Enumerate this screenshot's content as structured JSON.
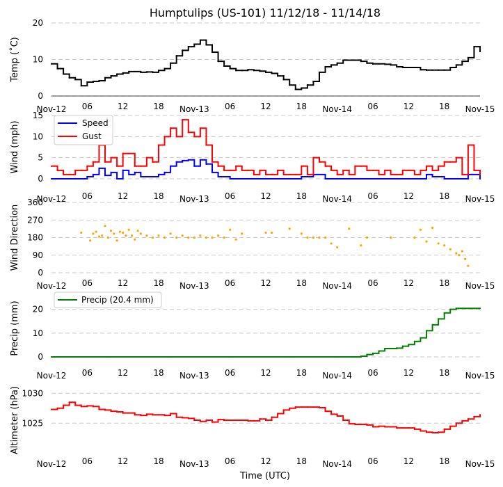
{
  "title": "Humptulips (US-101) 11/12/18 - 11/14/18",
  "xlabel": "Time (UTC)",
  "x_tick_labels": [
    "Nov-12",
    "06",
    "12",
    "18",
    "Nov-13",
    "06",
    "12",
    "18",
    "Nov-14",
    "06",
    "12",
    "18",
    "Nov-15"
  ],
  "colors": {
    "temp": "#000000",
    "speed": "#0000ff",
    "gust": "#ff0000",
    "direction": "#ffa500",
    "precip": "#008000",
    "altimeter": "#ff0000"
  },
  "chart_data": [
    {
      "type": "line",
      "name": "temp",
      "ylabel": "Temp (˚C)",
      "ylim": [
        0,
        20
      ],
      "yticks": [
        0,
        10,
        20
      ],
      "x_unit": "hours since Nov-12 00:00",
      "series": [
        {
          "name": "Temp",
          "color": "#000000",
          "x": [
            0,
            1,
            2,
            3,
            4,
            5,
            6,
            7,
            8,
            9,
            10,
            11,
            12,
            13,
            14,
            15,
            16,
            17,
            18,
            19,
            20,
            21,
            22,
            23,
            24,
            25,
            26,
            27,
            28,
            29,
            30,
            31,
            32,
            33,
            34,
            35,
            36,
            37,
            38,
            39,
            40,
            41,
            42,
            43,
            44,
            45,
            46,
            47,
            48,
            49,
            50,
            51,
            52,
            53,
            54,
            55,
            56,
            57,
            58,
            59,
            60,
            61,
            62,
            63,
            64,
            65,
            66,
            67,
            68,
            69,
            70,
            71,
            72
          ],
          "values": [
            8.8,
            7.5,
            6,
            5,
            4.5,
            2.8,
            3.8,
            4,
            4.2,
            5,
            5.5,
            6,
            6.3,
            6.7,
            6.7,
            6.5,
            6.6,
            6.5,
            7,
            7.5,
            9,
            11,
            12.5,
            13.5,
            14.2,
            15.3,
            14,
            12,
            9.5,
            8.2,
            7.5,
            7,
            7,
            7.2,
            7,
            6.8,
            6.5,
            6.2,
            5.5,
            4.5,
            3,
            1.8,
            2.2,
            3,
            4,
            6.5,
            8,
            8.5,
            9,
            9.8,
            9.8,
            9.8,
            9.5,
            9,
            8.8,
            8.8,
            8.7,
            8.5,
            8,
            7.8,
            7.8,
            7.8,
            7.2,
            7.1,
            7.1,
            7.1,
            7.1,
            7.8,
            8.5,
            9.5,
            10.5,
            13.5,
            12.2
          ]
        }
      ]
    },
    {
      "type": "line",
      "name": "wind",
      "ylabel": "Wind (mph)",
      "ylim": [
        0,
        15
      ],
      "yticks": [
        0,
        5,
        10,
        15
      ],
      "legend": "upper-left",
      "series": [
        {
          "name": "Speed",
          "color": "#0000ff",
          "x": [
            0,
            4,
            6,
            7,
            8,
            9,
            10,
            11,
            12,
            13,
            14,
            15,
            16,
            17,
            18,
            19,
            20,
            21,
            22,
            23,
            24,
            25,
            26,
            27,
            28,
            30,
            36,
            40,
            42,
            44,
            46,
            48,
            50,
            52,
            58,
            60,
            62,
            63,
            64,
            65,
            66,
            68,
            70,
            72
          ],
          "values": [
            0,
            0,
            0.5,
            1,
            2.5,
            0.8,
            1.5,
            0,
            2,
            1,
            1.5,
            0.5,
            0.5,
            0.5,
            1,
            1.5,
            3,
            4,
            4.3,
            4.5,
            3,
            4.5,
            3.5,
            1.5,
            0.5,
            0,
            0,
            0,
            0.5,
            1,
            0,
            0,
            0,
            0,
            0,
            0,
            0,
            1,
            0.5,
            0.5,
            0,
            0,
            1,
            0
          ]
        },
        {
          "name": "Gust",
          "color": "#ff0000",
          "x": [
            0,
            1,
            2,
            3,
            4,
            5,
            6,
            7,
            8,
            9,
            10,
            11,
            12,
            13,
            14,
            15,
            16,
            17,
            18,
            19,
            20,
            21,
            22,
            23,
            24,
            25,
            26,
            27,
            28,
            29,
            30,
            31,
            32,
            33,
            34,
            35,
            36,
            37,
            38,
            39,
            40,
            41,
            42,
            43,
            44,
            45,
            46,
            47,
            48,
            49,
            50,
            51,
            52,
            53,
            54,
            55,
            56,
            57,
            58,
            59,
            60,
            61,
            62,
            63,
            64,
            65,
            66,
            67,
            68,
            69,
            70,
            71,
            72
          ],
          "values": [
            3,
            2,
            1,
            1,
            2,
            2,
            3,
            4,
            8,
            4,
            5,
            3,
            6,
            6,
            3,
            3,
            5,
            4,
            8,
            10,
            12,
            10,
            14,
            11,
            10,
            12,
            8,
            4,
            3,
            2,
            2,
            3,
            2,
            2,
            1,
            2,
            1,
            1,
            2,
            1,
            1,
            1,
            3,
            1,
            5,
            4,
            3,
            2,
            1,
            2,
            1,
            3,
            3,
            2,
            2,
            1,
            2,
            1,
            1,
            2,
            2,
            1,
            2,
            3,
            2,
            3,
            4,
            4,
            5,
            1,
            8,
            2,
            1
          ]
        }
      ]
    },
    {
      "type": "scatter",
      "name": "direction",
      "ylabel": "Wind Direction",
      "ylim": [
        0,
        360
      ],
      "yticks": [
        0,
        90,
        180,
        270,
        360
      ],
      "series": [
        {
          "name": "Direction",
          "color": "#ffa500",
          "x": [
            5,
            6.5,
            7,
            7.5,
            8,
            8.5,
            9,
            9.5,
            10,
            10.5,
            11,
            11.5,
            12,
            12.5,
            13,
            13.5,
            14,
            14.5,
            15,
            16,
            17,
            18,
            19,
            20,
            21,
            22,
            23,
            24,
            25,
            26,
            27,
            28,
            29,
            30,
            31,
            32,
            36,
            37,
            40,
            42,
            43,
            44,
            45,
            46,
            47,
            48,
            50,
            52,
            53,
            57,
            61,
            62,
            63,
            64,
            65,
            66,
            67,
            68,
            68.5,
            69,
            69.5,
            70
          ],
          "values": [
            205,
            165,
            200,
            210,
            185,
            190,
            240,
            180,
            215,
            200,
            165,
            210,
            205,
            190,
            220,
            190,
            170,
            215,
            200,
            190,
            180,
            190,
            180,
            200,
            180,
            190,
            180,
            180,
            190,
            180,
            180,
            190,
            180,
            220,
            170,
            200,
            205,
            205,
            225,
            200,
            180,
            180,
            180,
            180,
            150,
            130,
            225,
            140,
            180,
            180,
            180,
            220,
            160,
            230,
            150,
            140,
            120,
            100,
            90,
            110,
            70,
            35
          ]
        }
      ]
    },
    {
      "type": "line",
      "name": "precip",
      "ylabel": "Precip (mm)",
      "ylim": [
        0,
        24
      ],
      "yticks": [
        0,
        10,
        20
      ],
      "legend_label": "Precip (20.4 mm)",
      "series": [
        {
          "name": "Precip (20.4 mm)",
          "color": "#008000",
          "x": [
            0,
            10,
            20,
            30,
            40,
            48,
            52,
            53,
            54,
            55,
            56,
            57,
            58,
            59,
            60,
            61,
            62,
            63,
            64,
            65,
            66,
            67,
            68,
            69,
            70,
            71,
            72
          ],
          "values": [
            0,
            0,
            0,
            0,
            0,
            0,
            0.3,
            1,
            1.5,
            2.5,
            3.5,
            3.5,
            3.7,
            4.5,
            5.2,
            6.5,
            8,
            11,
            13.5,
            16,
            18.5,
            20,
            20.4,
            20.4,
            20.4,
            20.4,
            20.4
          ]
        }
      ]
    },
    {
      "type": "line",
      "name": "altimeter",
      "ylabel": "Altimeter (hPa)",
      "ylim": [
        1020.5,
        1030.5
      ],
      "yticks": [
        1025,
        1030
      ],
      "series": [
        {
          "name": "Altimeter",
          "color": "#ff0000",
          "x": [
            0,
            1,
            2,
            3,
            4,
            5,
            6,
            7,
            8,
            9,
            10,
            11,
            12,
            13,
            14,
            15,
            16,
            17,
            18,
            19,
            20,
            21,
            22,
            23,
            24,
            25,
            26,
            27,
            28,
            29,
            30,
            31,
            32,
            33,
            34,
            35,
            36,
            37,
            38,
            39,
            40,
            41,
            42,
            43,
            44,
            45,
            46,
            47,
            48,
            49,
            50,
            51,
            52,
            53,
            54,
            55,
            56,
            57,
            58,
            59,
            60,
            61,
            62,
            63,
            64,
            65,
            66,
            67,
            68,
            69,
            70,
            71,
            72
          ],
          "values": [
            1027.3,
            1027.5,
            1028,
            1028.5,
            1028,
            1027.8,
            1027.9,
            1027.8,
            1027.3,
            1027.2,
            1027,
            1026.9,
            1026.7,
            1026.7,
            1026.4,
            1026.3,
            1026.5,
            1026.4,
            1026.4,
            1026.3,
            1026.6,
            1026,
            1025.9,
            1025.8,
            1025.5,
            1025.3,
            1025.5,
            1025.2,
            1025.6,
            1025.5,
            1025.5,
            1025.5,
            1025.5,
            1025.4,
            1025.4,
            1025.7,
            1025.5,
            1026,
            1026.6,
            1027.2,
            1027.5,
            1027.7,
            1027.7,
            1027.7,
            1027.7,
            1027.6,
            1027,
            1026.5,
            1026.2,
            1025.5,
            1024.9,
            1024.8,
            1024.8,
            1024.7,
            1024.4,
            1024.5,
            1024.4,
            1024.4,
            1024.2,
            1024.2,
            1024.2,
            1024,
            1023.7,
            1023.5,
            1023.4,
            1023.5,
            1024,
            1024.5,
            1025,
            1025.4,
            1025.7,
            1026.1,
            1026.4
          ]
        }
      ]
    }
  ]
}
